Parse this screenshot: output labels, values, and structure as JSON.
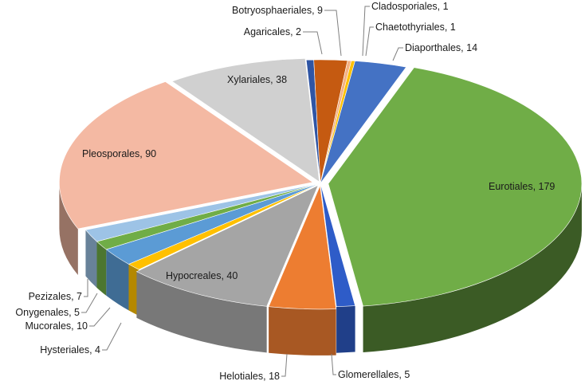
{
  "chart_data": {
    "type": "pie",
    "title": "",
    "style": "3d-exploded-pie",
    "categories": [
      "Agaricales",
      "Botryosphaeriales",
      "Cladosporiales",
      "Chaetothyriales",
      "Diaporthales",
      "Eurotiales",
      "Glomerellales",
      "Helotiales",
      "Hypocreales",
      "Hysteriales",
      "Mucorales",
      "Onygenales",
      "Pezizales",
      "Pleosporales",
      "Xylariales"
    ],
    "values": [
      2,
      9,
      1,
      1,
      14,
      179,
      5,
      18,
      40,
      4,
      10,
      5,
      7,
      90,
      38
    ],
    "labels": [
      "Agaricales, 2",
      "Botryosphaeriales, 9",
      "Cladosporiales, 1",
      "Chaetothyriales, 1",
      "Diaporthales, 14",
      "Eurotiales, 179",
      "Glomerellales, 5",
      "Helotiales, 18",
      "Hypocreales, 40",
      "Hysteriales, 4",
      "Mucorales, 10",
      "Onygenales, 5",
      "Pezizales, 7",
      "Pleosporales, 90",
      "Xylariales, 38"
    ],
    "colors": [
      "#2f55a4",
      "#c55a11",
      "#f4b183",
      "#ffc000",
      "#4472c4",
      "#70ad47",
      "#2e5cc8",
      "#ed7d31",
      "#a5a5a5",
      "#ffc000",
      "#5b9bd5",
      "#70ad47",
      "#9dc3e6",
      "#f4b9a3",
      "#d0d0d0"
    ],
    "legend": "none"
  }
}
